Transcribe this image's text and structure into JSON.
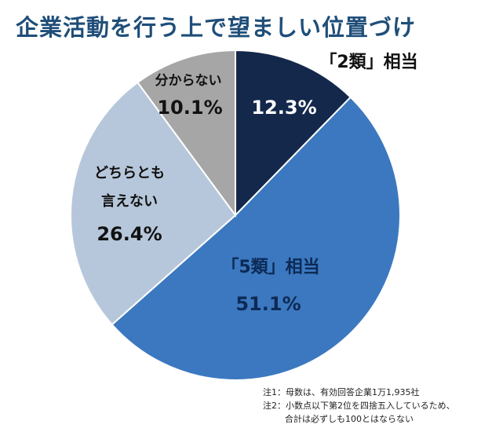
{
  "title": "企業活動を行う上で望ましい位置づけ",
  "chart_data": {
    "type": "pie",
    "title": "企業活動を行う上で望ましい位置づけ",
    "slices": [
      {
        "label": "「2類」相当",
        "value": 12.3,
        "display": "12.3%",
        "color": "#14284b"
      },
      {
        "label": "「5類」相当",
        "value": 51.1,
        "display": "51.1%",
        "color": "#3b78c0"
      },
      {
        "label": "どちらとも言えない",
        "value": 26.4,
        "display": "26.4%",
        "color": "#b7c7db"
      },
      {
        "label": "分からない",
        "value": 10.1,
        "display": "10.1%",
        "color": "#a6a6a6"
      }
    ]
  },
  "notes": {
    "note1": "注1：母数は、有効回答企業1万1,935社",
    "note2": "注2：小数点以下第2位を四捨五入しているため、",
    "note3": "合計は必ずしも100とはならない"
  }
}
